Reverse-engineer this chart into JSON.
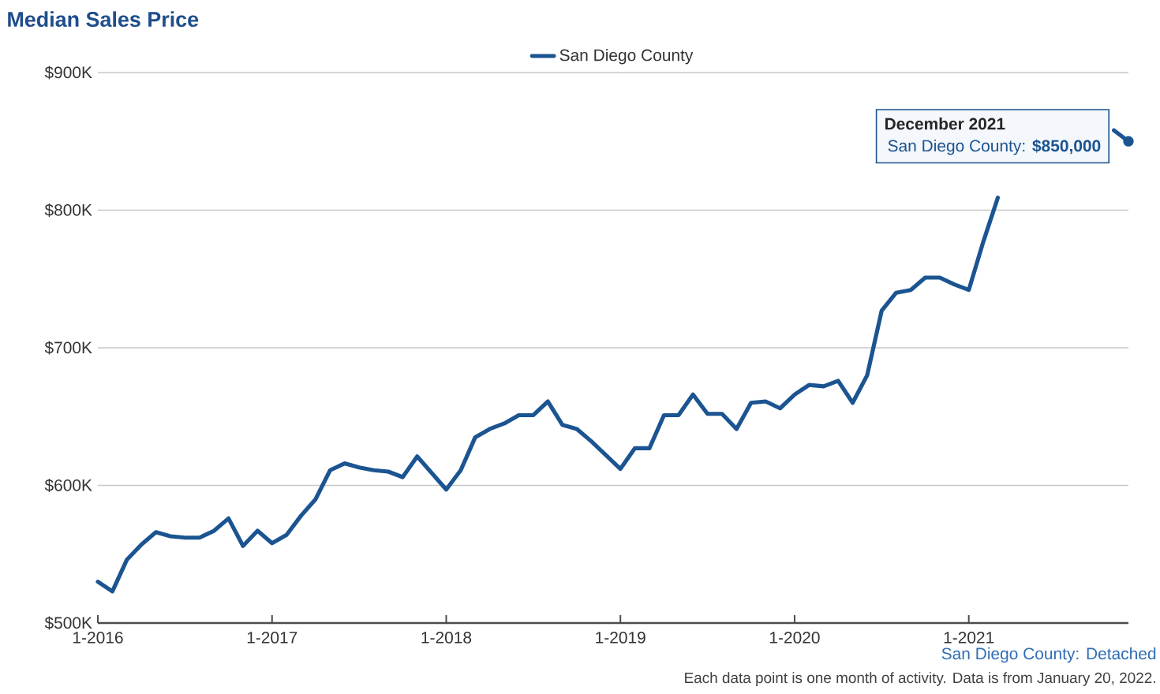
{
  "chart_data": {
    "type": "line",
    "title": "Median Sales Price",
    "x": [
      "2016-01",
      "2016-02",
      "2016-03",
      "2016-04",
      "2016-05",
      "2016-06",
      "2016-07",
      "2016-08",
      "2016-09",
      "2016-10",
      "2016-11",
      "2016-12",
      "2017-01",
      "2017-02",
      "2017-03",
      "2017-04",
      "2017-05",
      "2017-06",
      "2017-07",
      "2017-08",
      "2017-09",
      "2017-10",
      "2017-11",
      "2017-12",
      "2018-01",
      "2018-02",
      "2018-03",
      "2018-04",
      "2018-05",
      "2018-06",
      "2018-07",
      "2018-08",
      "2018-09",
      "2018-10",
      "2018-11",
      "2018-12",
      "2019-01",
      "2019-02",
      "2019-03",
      "2019-04",
      "2019-05",
      "2019-06",
      "2019-07",
      "2019-08",
      "2019-09",
      "2019-10",
      "2019-11",
      "2019-12",
      "2020-01",
      "2020-02",
      "2020-03",
      "2020-04",
      "2020-05",
      "2020-06",
      "2020-07",
      "2020-08",
      "2020-09",
      "2020-10",
      "2020-11",
      "2020-12",
      "2021-01",
      "2021-02",
      "2021-03",
      "2021-04",
      "2021-05",
      "2021-06",
      "2021-07",
      "2021-08",
      "2021-09",
      "2021-10",
      "2021-11",
      "2021-12"
    ],
    "series": [
      {
        "name": "San Diego County",
        "color": "#1b5491",
        "values": [
          530000,
          523000,
          546000,
          557000,
          566000,
          563000,
          562000,
          562000,
          567000,
          576000,
          556000,
          567000,
          558000,
          564000,
          578000,
          590000,
          611000,
          616000,
          613000,
          611000,
          610000,
          606000,
          621000,
          609000,
          597000,
          611000,
          635000,
          641000,
          645000,
          651000,
          651000,
          661000,
          644000,
          641000,
          632000,
          622000,
          612000,
          627000,
          627000,
          651000,
          651000,
          666000,
          652000,
          652000,
          641000,
          660000,
          661000,
          656000,
          666000,
          673000,
          672000,
          676000,
          660000,
          680000,
          727000,
          740000,
          742000,
          751000,
          751000,
          746000,
          742000,
          777000,
          809000,
          null,
          null,
          null,
          null,
          null,
          null,
          null,
          858000,
          850000
        ]
      }
    ],
    "xlim": [
      "2016-01",
      "2021-12"
    ],
    "xticks": [
      {
        "value": "2016-01",
        "label": "1-2016"
      },
      {
        "value": "2017-01",
        "label": "1-2017"
      },
      {
        "value": "2018-01",
        "label": "1-2018"
      },
      {
        "value": "2019-01",
        "label": "1-2019"
      },
      {
        "value": "2020-01",
        "label": "1-2020"
      },
      {
        "value": "2021-01",
        "label": "1-2021"
      }
    ],
    "ylim": [
      500000,
      900000
    ],
    "yticks": [
      {
        "value": 500000,
        "label": "$500K"
      },
      {
        "value": 600000,
        "label": "$600K"
      },
      {
        "value": 700000,
        "label": "$700K"
      },
      {
        "value": 800000,
        "label": "$800K"
      },
      {
        "value": 900000,
        "label": "$900K"
      }
    ],
    "grid": "y",
    "legend": "top",
    "marker": "none",
    "annotations": [
      "December 2021",
      {
        "text": "San Diego County: **$850,000**",
        "x": "2021-12",
        "y": 850000
      },
      "San Diego County: Detached",
      "Each data point is one month of activity. Data is from January 20, 2022."
    ]
  }
}
